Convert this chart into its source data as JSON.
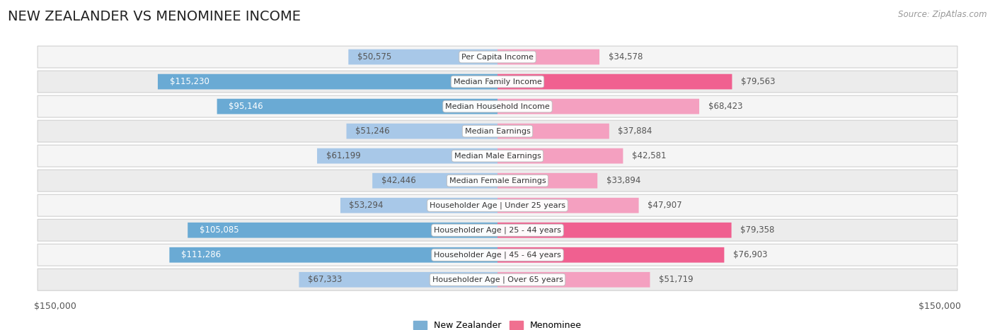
{
  "title": "NEW ZEALANDER VS MENOMINEE INCOME",
  "source": "Source: ZipAtlas.com",
  "categories": [
    "Per Capita Income",
    "Median Family Income",
    "Median Household Income",
    "Median Earnings",
    "Median Male Earnings",
    "Median Female Earnings",
    "Householder Age | Under 25 years",
    "Householder Age | 25 - 44 years",
    "Householder Age | 45 - 64 years",
    "Householder Age | Over 65 years"
  ],
  "nz_values": [
    50575,
    115230,
    95146,
    51246,
    61199,
    42446,
    53294,
    105085,
    111286,
    67333
  ],
  "men_values": [
    34578,
    79563,
    68423,
    37884,
    42581,
    33894,
    47907,
    79358,
    76903,
    51719
  ],
  "nz_labels": [
    "$50,575",
    "$115,230",
    "$95,146",
    "$51,246",
    "$61,199",
    "$42,446",
    "$53,294",
    "$105,085",
    "$111,286",
    "$67,333"
  ],
  "men_labels": [
    "$34,578",
    "$79,563",
    "$68,423",
    "$37,884",
    "$42,581",
    "$33,894",
    "$47,907",
    "$79,358",
    "$76,903",
    "$51,719"
  ],
  "max_val": 150000,
  "nz_color": "#a8c8e8",
  "men_color": "#f4a0c0",
  "nz_strong_color": "#6aaad4",
  "men_strong_color": "#f06090",
  "nz_legend_color": "#7bafd4",
  "men_legend_color": "#f07090",
  "bg_color": "#ffffff",
  "row_bg_even": "#f5f5f5",
  "row_bg_odd": "#ececec",
  "title_fontsize": 14,
  "source_fontsize": 8.5,
  "bar_label_fontsize": 8.5,
  "cat_label_fontsize": 8,
  "axis_label_fontsize": 9,
  "legend_fontsize": 9,
  "inside_label_threshold": 75000
}
